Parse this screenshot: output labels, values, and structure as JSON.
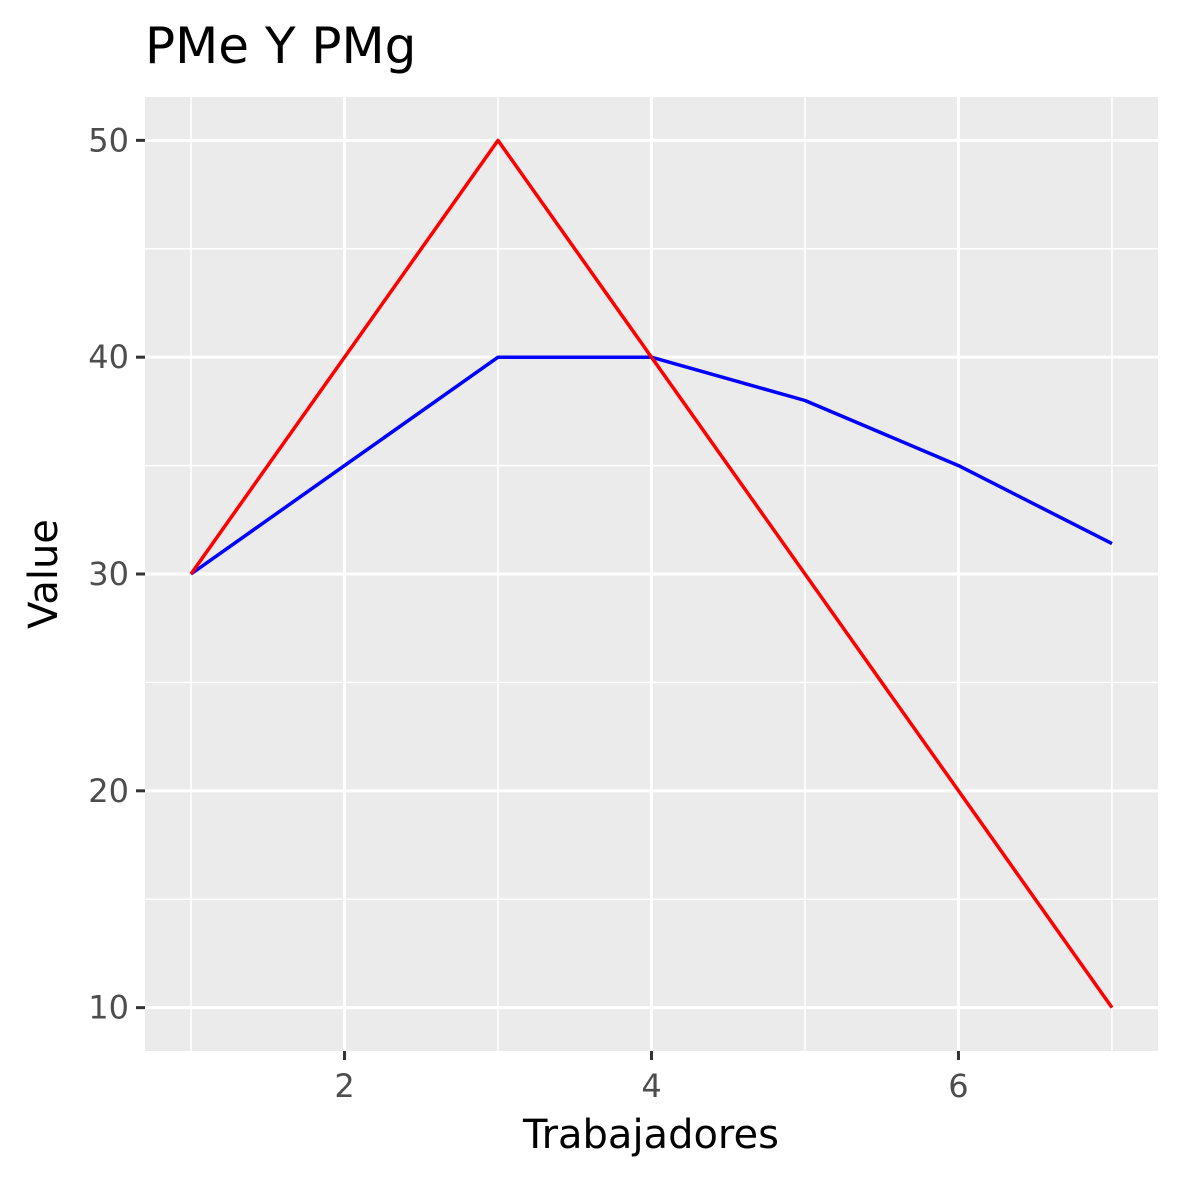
{
  "chart_data": {
    "type": "line",
    "title": "PMe Y PMg",
    "xlabel": "Trabajadores",
    "ylabel": "Value",
    "x": [
      1,
      2,
      3,
      4,
      5,
      6,
      7
    ],
    "xlim": [
      0.7,
      7.3
    ],
    "ylim": [
      8,
      52
    ],
    "x_ticks": [
      2,
      4,
      6
    ],
    "y_ticks": [
      10,
      20,
      30,
      40,
      50
    ],
    "x_tick_labels": [
      "2",
      "4",
      "6"
    ],
    "y_tick_labels": [
      "10",
      "20",
      "30",
      "40",
      "50"
    ],
    "grid": true,
    "legend": "none",
    "background_color": "#ebebeb",
    "series": [
      {
        "color": "#0000ff",
        "values": [
          30,
          35,
          40,
          40,
          38,
          35,
          31.4
        ]
      },
      {
        "color": "#ff0000",
        "values": [
          30,
          40,
          50,
          40,
          30,
          20,
          10
        ]
      }
    ]
  }
}
